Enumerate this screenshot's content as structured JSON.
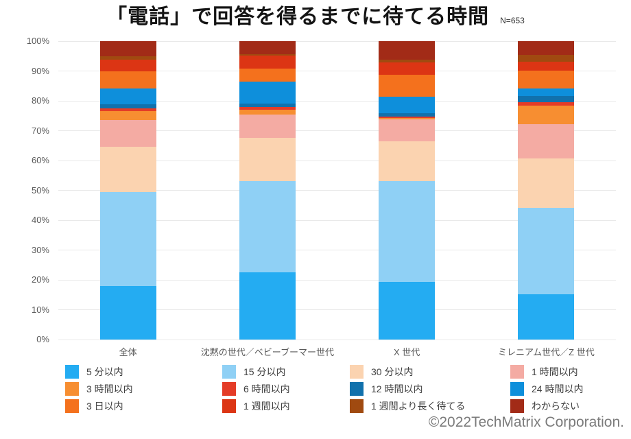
{
  "header": {
    "title": "「電話」で回答を得るまでに待てる時間",
    "n_label": "N=653"
  },
  "footer": {
    "copyright": "©2022TechMatrix Corporation."
  },
  "chart_data": {
    "type": "bar",
    "variant": "stacked-100-percent-column",
    "title": "「電話」で回答を得るまでに待てる時間",
    "sample_size": "N=653",
    "categories": [
      "全体",
      "沈黙の世代／ベビーブーマー世代",
      "X 世代",
      "ミレニアム世代／Z 世代"
    ],
    "series": [
      {
        "name": "5 分以内",
        "color": "#24acf2",
        "values": [
          18.0,
          22.6,
          19.3,
          15.2
        ]
      },
      {
        "name": "15 分以内",
        "color": "#8fd0f5",
        "values": [
          31.5,
          30.4,
          33.8,
          28.9
        ]
      },
      {
        "name": "30 分以内",
        "color": "#fbd3b0",
        "values": [
          15.0,
          14.6,
          13.4,
          16.5
        ]
      },
      {
        "name": "1 時間以内",
        "color": "#f4aba3",
        "values": [
          9.1,
          7.7,
          7.4,
          11.7
        ]
      },
      {
        "name": "3 時間以内",
        "color": "#f78e31",
        "values": [
          2.9,
          1.8,
          0.3,
          6.0
        ]
      },
      {
        "name": "6 時間以内",
        "color": "#e43c27",
        "values": [
          0.9,
          0.8,
          0.6,
          1.3
        ]
      },
      {
        "name": "12 時間以内",
        "color": "#1171ac",
        "values": [
          1.5,
          1.1,
          1.0,
          2.1
        ]
      },
      {
        "name": "24 時間以内",
        "color": "#0e8fdb",
        "values": [
          5.2,
          7.5,
          5.5,
          2.5
        ]
      },
      {
        "name": "3 日以内",
        "color": "#f4711d",
        "values": [
          5.7,
          4.4,
          7.4,
          6.0
        ]
      },
      {
        "name": "1 週間以内",
        "color": "#dc3514",
        "values": [
          3.9,
          4.4,
          4.1,
          2.9
        ]
      },
      {
        "name": "1 週間より長く待てる",
        "color": "#a04a10",
        "values": [
          1.3,
          0.4,
          1.1,
          2.3
        ]
      },
      {
        "name": "わからない",
        "color": "#a22b17",
        "values": [
          5.0,
          4.3,
          6.1,
          4.6
        ]
      }
    ],
    "ylim": [
      0,
      100
    ],
    "yticks": [
      "0%",
      "10%",
      "20%",
      "30%",
      "40%",
      "50%",
      "60%",
      "70%",
      "80%",
      "90%",
      "100%"
    ],
    "grid": true,
    "legend_position": "bottom",
    "legend_columns": 4
  }
}
